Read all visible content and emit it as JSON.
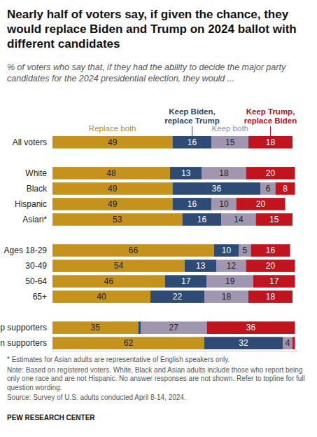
{
  "chart_data": {
    "type": "bar",
    "orientation": "horizontal",
    "stacked": true,
    "data_labels": true,
    "tick_labels": "y",
    "grid": false,
    "legend": "top",
    "title": "Nearly half of voters say, if given the chance, they would replace Biden and Trump on 2024 ballot with different candidates",
    "subtitle": "% of voters who say that, if they had the ability to decide the major party candidates for the 2024 presidential election, they would ...",
    "categories": [
      "All voters",
      null,
      "White",
      "Black",
      "Hispanic",
      "Asian*",
      null,
      "Ages 18-29",
      "30-49",
      "50-64",
      "65+",
      null,
      "Trump supporters",
      "Biden supporters"
    ],
    "xlim": [
      0,
      100
    ],
    "series": [
      {
        "name": "Replace both",
        "color": "#c6921e",
        "values": [
          49,
          null,
          48,
          49,
          49,
          53,
          null,
          66,
          54,
          46,
          40,
          null,
          35,
          62
        ]
      },
      {
        "name": "Keep Biden, replace Trump",
        "color": "#2e4b75",
        "values": [
          16,
          null,
          13,
          36,
          16,
          16,
          null,
          10,
          13,
          17,
          22,
          null,
          1,
          32
        ],
        "value_labels": [
          "16",
          null,
          "13",
          "36",
          "16",
          "16",
          null,
          "10",
          "13",
          "17",
          "22",
          null,
          null,
          "32"
        ]
      },
      {
        "name": "Keep both",
        "color": "#a196b0",
        "values": [
          15,
          null,
          18,
          6,
          10,
          14,
          null,
          5,
          12,
          19,
          18,
          null,
          27,
          4
        ]
      },
      {
        "name": "Keep Trump, replace Biden",
        "color": "#c0141e",
        "values": [
          18,
          null,
          20,
          8,
          20,
          15,
          null,
          16,
          20,
          17,
          18,
          null,
          36,
          1
        ],
        "value_labels": [
          "18",
          null,
          "20",
          "8",
          "20",
          "15",
          null,
          "16",
          "20",
          "17",
          "18",
          null,
          "36",
          null
        ]
      }
    ],
    "footnotes": [
      "* Estimates for Asian adults are representative of English speakers only.",
      "Note: Based on registered voters. White, Black and Asian adults include those who report being only one race and are not Hispanic. No answer responses are not shown. Refer to topline for full question wording.",
      "Source: Survey of U.S. adults conducted April 8-14, 2024."
    ],
    "credit": "PEW RESEARCH CENTER"
  }
}
